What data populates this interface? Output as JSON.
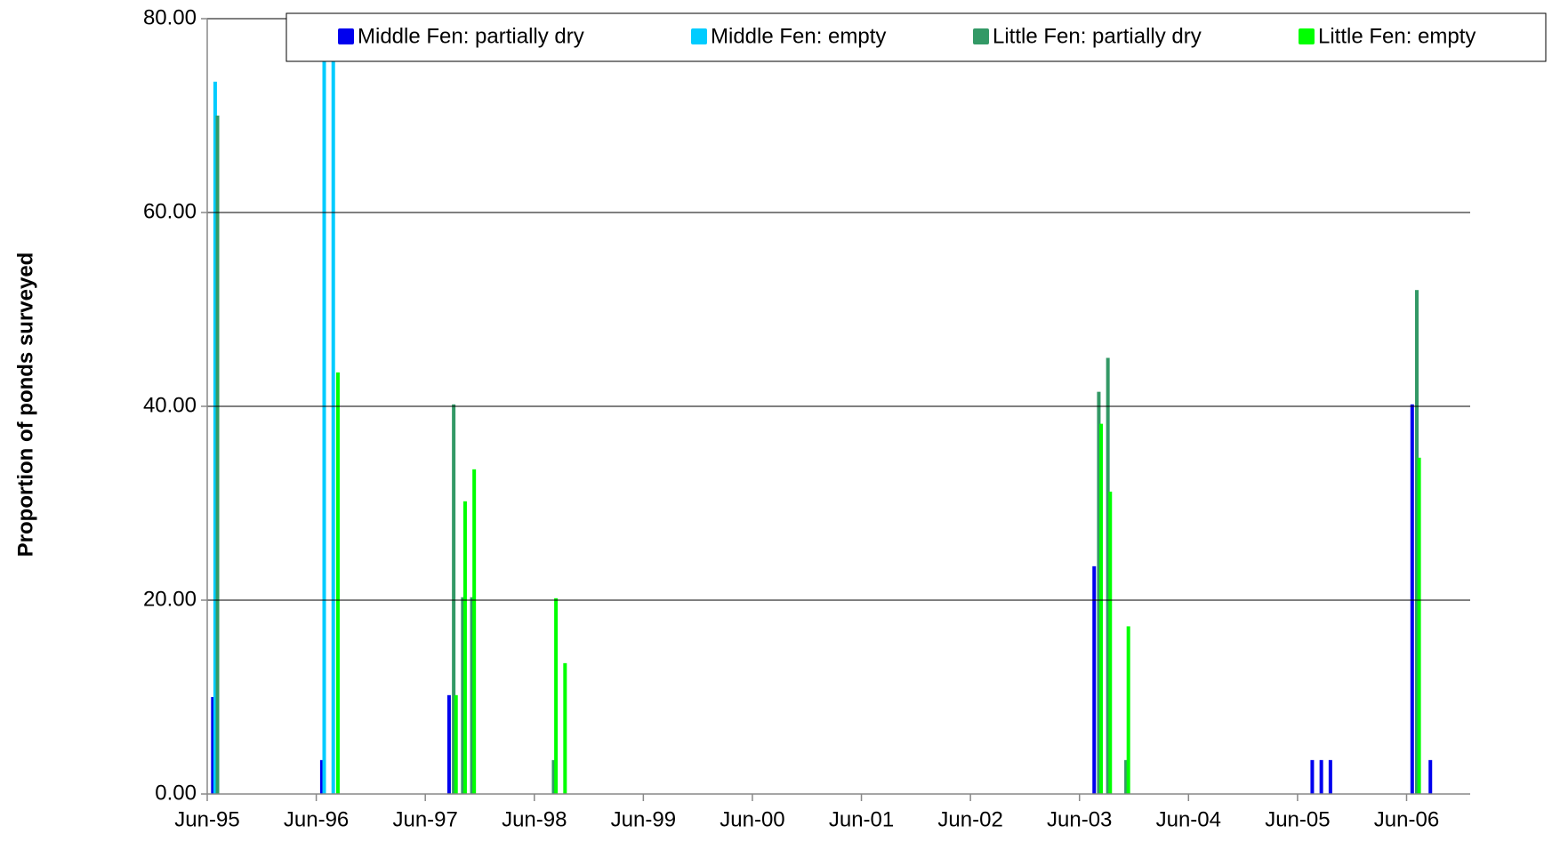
{
  "chart_data": {
    "type": "bar",
    "y_label": "Proportion of ponds surveyed",
    "x": [
      "Jul-95",
      "Jul-96",
      "Aug-96",
      "Sep-97",
      "Oct-97",
      "Nov-97",
      "Aug-98",
      "Sep-98",
      "Aug-03",
      "Sep-03",
      "Nov-03",
      "Aug-05",
      "Sep-05",
      "Oct-05",
      "Jul-06",
      "Sep-06"
    ],
    "series": [
      {
        "name": "Middle Fen: partially dry",
        "color": "#0000ee",
        "values": [
          10,
          3.5,
          null,
          10.2,
          null,
          null,
          null,
          null,
          23.5,
          null,
          null,
          3.5,
          3.5,
          3.5,
          40.2,
          3.5
        ]
      },
      {
        "name": "Middle Fen: empty",
        "color": "#00ccff",
        "values": [
          73.5,
          80,
          80,
          null,
          null,
          null,
          null,
          null,
          null,
          null,
          null,
          null,
          null,
          null,
          null,
          null
        ]
      },
      {
        "name": "Little Fen: partially dry",
        "color": "#339966",
        "values": [
          70,
          null,
          null,
          40.2,
          20.3,
          20.3,
          3.5,
          null,
          41.5,
          45,
          3.5,
          null,
          null,
          null,
          52,
          null
        ]
      },
      {
        "name": "Little Fen: empty",
        "color": "#00ff00",
        "values": [
          null,
          null,
          43.5,
          10.2,
          30.2,
          33.5,
          20.2,
          13.5,
          38.2,
          31.2,
          17.3,
          null,
          null,
          null,
          34.7,
          null
        ]
      }
    ],
    "xlim": [
      "Jun-95",
      "Jan-07"
    ],
    "xticks": [
      "Jun-95",
      "Jun-96",
      "Jun-97",
      "Jun-98",
      "Jun-99",
      "Jun-00",
      "Jun-01",
      "Jun-02",
      "Jun-03",
      "Jun-04",
      "Jun-05",
      "Jun-06"
    ],
    "ylim": [
      0,
      80
    ],
    "yticks": [
      {
        "value": 0,
        "label": "0.00"
      },
      {
        "value": 20,
        "label": "20.00"
      },
      {
        "value": 40,
        "label": "40.00"
      },
      {
        "value": 60,
        "label": "60.00"
      },
      {
        "value": 80,
        "label": "80.00"
      }
    ],
    "grid": true,
    "legend": "top"
  }
}
